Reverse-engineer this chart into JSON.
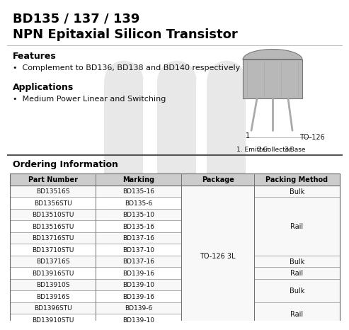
{
  "title_line1": "BD135 / 137 / 139",
  "title_line2": "NPN Epitaxial Silicon Transistor",
  "features_title": "Features",
  "features": [
    "Complement to BD136, BD138 and BD140 respectively"
  ],
  "applications_title": "Applications",
  "applications": [
    "Medium Power Linear and Switching"
  ],
  "package_label": "TO-126",
  "pin_labels_parts": [
    "1. Emitter",
    "2.Collector",
    "3.Base"
  ],
  "ordering_title": "Ordering Information",
  "table_headers": [
    "Part Number",
    "Marking",
    "Package",
    "Packing Method"
  ],
  "table_rows": [
    [
      "BD13516S",
      "BD135-16"
    ],
    [
      "BD1356STU",
      "BD135-6"
    ],
    [
      "BD13510STU",
      "BD135-10"
    ],
    [
      "BD13516STU",
      "BD135-16"
    ],
    [
      "BD13716STU",
      "BD137-16"
    ],
    [
      "BD13710STU",
      "BD137-10"
    ],
    [
      "BD13716S",
      "BD137-16"
    ],
    [
      "BD13916STU",
      "BD139-16"
    ],
    [
      "BD13910S",
      "BD139-10"
    ],
    [
      "BD13916S",
      "BD139-16"
    ],
    [
      "BD1396STU",
      "BD139-6"
    ],
    [
      "BD13910STU",
      "BD139-10"
    ]
  ],
  "packing_groups": [
    [
      0,
      1,
      "Bulk"
    ],
    [
      1,
      5,
      "Rail"
    ],
    [
      6,
      1,
      "Bulk"
    ],
    [
      7,
      1,
      "Rail"
    ],
    [
      8,
      2,
      "Bulk"
    ],
    [
      10,
      2,
      "Rail"
    ]
  ],
  "bg_color": "#ffffff",
  "header_bg": "#cccccc",
  "row_bg_even": "#f8f8f8",
  "row_bg_odd": "#ffffff",
  "line_color": "#888888",
  "border_color": "#666666",
  "title_color": "#000000",
  "text_color": "#111111",
  "watermark_color": "#e8e8e8"
}
